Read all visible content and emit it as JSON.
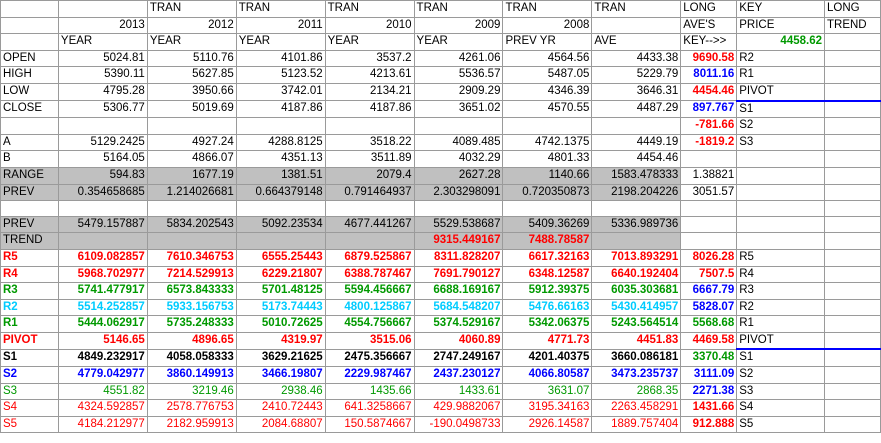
{
  "header": {
    "row1": [
      "",
      "",
      "TRAN",
      "TRAN",
      "TRAN",
      "TRAN",
      "TRAN",
      "TRAN",
      "LONG",
      "KEY",
      "LONG"
    ],
    "row2": [
      "",
      "2013",
      "2012",
      "2011",
      "2010",
      "2009",
      "2008",
      "",
      "AVE'S",
      "PRICE",
      "TREND"
    ],
    "row3": [
      "",
      "YEAR",
      "YEAR",
      "YEAR",
      "YEAR",
      "YEAR",
      "PREV YR",
      "AVE",
      "KEY-->>",
      "4458.62",
      ""
    ]
  },
  "rows": [
    {
      "name": "row-open",
      "style": "plain",
      "cells": [
        "OPEN",
        "5024.81",
        "5110.76",
        "4101.86",
        "3537.2",
        "4261.06",
        "4564.56",
        "4433.38",
        "9690.58",
        "R2",
        ""
      ],
      "longColor": "red"
    },
    {
      "name": "row-high",
      "style": "plain",
      "cells": [
        "HIGH",
        "5390.11",
        "5627.85",
        "5123.52",
        "4213.61",
        "5536.57",
        "5487.05",
        "5229.79",
        "8011.16",
        "R1",
        ""
      ],
      "longColor": "blue"
    },
    {
      "name": "row-low",
      "style": "plain",
      "cells": [
        "LOW",
        "4795.28",
        "3950.66",
        "3742.01",
        "2134.21",
        "2909.29",
        "4346.39",
        "3646.31",
        "4454.46",
        "PIVOT",
        ""
      ],
      "longColor": "red"
    },
    {
      "name": "row-close",
      "style": "plain",
      "cells": [
        "CLOSE",
        "5306.77",
        "5019.69",
        "4187.86",
        "4187.86",
        "3651.02",
        "4570.55",
        "4487.29",
        "897.767",
        "S1",
        ""
      ],
      "longColor": "blue"
    },
    {
      "name": "row-blank1",
      "style": "plain",
      "cells": [
        "",
        "",
        "",
        "",
        "",
        "",
        "",
        "",
        "-781.66",
        "S2",
        ""
      ],
      "longColor": "red"
    },
    {
      "name": "row-a",
      "style": "plain",
      "cells": [
        "A",
        "5129.2425",
        "4927.24",
        "4288.8125",
        "3518.22",
        "4089.485",
        "4742.1375",
        "4449.19",
        "-1819.2",
        "S3",
        ""
      ],
      "longColor": "red"
    },
    {
      "name": "row-b",
      "style": "plain",
      "cells": [
        "B",
        "5164.05",
        "4866.07",
        "4351.13",
        "3511.89",
        "4032.29",
        "4801.33",
        "4454.46",
        "",
        "",
        ""
      ],
      "longColor": "none"
    },
    {
      "name": "row-range",
      "style": "gray",
      "cells": [
        "RANGE",
        "594.83",
        "1677.19",
        "1381.51",
        "2079.4",
        "2627.28",
        "1140.66",
        "1583.478333",
        "1.38821",
        "",
        ""
      ],
      "longColor": "plain"
    },
    {
      "name": "row-prev",
      "style": "gray",
      "cells": [
        "PREV",
        "0.354658685",
        "1.214026681",
        "0.664379148",
        "0.791464937",
        "2.303298091",
        "0.720350873",
        "2198.204226",
        "3051.57",
        "",
        ""
      ],
      "longColor": "plain"
    },
    {
      "name": "row-blank2",
      "style": "plain",
      "cells": [
        "",
        "",
        "",
        "",
        "",
        "",
        "",
        "",
        "",
        "",
        ""
      ],
      "longColor": "none"
    },
    {
      "name": "row-prev2",
      "style": "gray",
      "cells": [
        "PREV",
        "5479.157887",
        "5834.202543",
        "5092.23534",
        "4677.441267",
        "5529.538687",
        "5409.36269",
        "5336.989736",
        "",
        "",
        ""
      ],
      "longColor": "none"
    },
    {
      "name": "row-trend",
      "style": "gray-trend",
      "cells": [
        "TREND",
        "",
        "",
        "",
        "",
        "9315.449167",
        "7488.78587",
        "",
        "",
        "",
        ""
      ],
      "longColor": "none"
    },
    {
      "name": "row-r5",
      "style": "red",
      "cells": [
        "R5",
        "6109.082857",
        "7610.346753",
        "6555.25443",
        "6879.525867",
        "8311.828207",
        "6617.32163",
        "7013.893291",
        "8026.28",
        "R5",
        ""
      ],
      "longColor": "red"
    },
    {
      "name": "row-r4",
      "style": "red",
      "cells": [
        "R4",
        "5968.702977",
        "7214.529913",
        "6229.21807",
        "6388.787467",
        "7691.790127",
        "6348.12587",
        "6640.192404",
        "7507.5",
        "R4",
        ""
      ],
      "longColor": "red"
    },
    {
      "name": "row-r3",
      "style": "green",
      "cells": [
        "R3",
        "5741.477917",
        "6573.843333",
        "5701.48125",
        "5594.456667",
        "6688.169167",
        "5912.39375",
        "6035.303681",
        "6667.79",
        "R3",
        ""
      ],
      "longColor": "blue"
    },
    {
      "name": "row-r2",
      "style": "cyan",
      "cells": [
        "R2",
        "5514.252857",
        "5933.156753",
        "5173.74443",
        "4800.125867",
        "5684.548207",
        "5476.66163",
        "5430.414957",
        "5828.07",
        "R2",
        ""
      ],
      "longColor": "blue"
    },
    {
      "name": "row-r1",
      "style": "green",
      "cells": [
        "R1",
        "5444.062917",
        "5735.248333",
        "5010.72625",
        "4554.756667",
        "5374.529167",
        "5342.06375",
        "5243.564514",
        "5568.68",
        "R1",
        ""
      ],
      "longColor": "green"
    },
    {
      "name": "row-pivot",
      "style": "red",
      "cells": [
        "PIVOT",
        "5146.65",
        "4896.65",
        "4319.97",
        "3515.06",
        "4060.89",
        "4771.73",
        "4451.83",
        "4469.58",
        "PIVOT",
        ""
      ],
      "longColor": "red"
    },
    {
      "name": "row-s1",
      "style": "black",
      "cells": [
        "S1",
        "4849.232917",
        "4058.058333",
        "3629.21625",
        "2475.356667",
        "2747.249167",
        "4201.40375",
        "3660.086181",
        "3370.48",
        "S1",
        ""
      ],
      "longColor": "green"
    },
    {
      "name": "row-s2",
      "style": "blue",
      "cells": [
        "S2",
        "4779.042977",
        "3860.149913",
        "3466.19807",
        "2229.987467",
        "2437.230127",
        "4066.80587",
        "3473.235737",
        "3111.09",
        "S2",
        ""
      ],
      "longColor": "blue"
    },
    {
      "name": "row-s3",
      "style": "green-plain",
      "cells": [
        "S3",
        "4551.82",
        "3219.46",
        "2938.46",
        "1435.66",
        "1433.61",
        "3631.07",
        "2868.35",
        "2271.38",
        "S3",
        ""
      ],
      "longColor": "blue"
    },
    {
      "name": "row-s4",
      "style": "red-plain",
      "cells": [
        "S4",
        "4324.592857",
        "2578.776753",
        "2410.72443",
        "641.3258667",
        "429.9882067",
        "3195.34163",
        "2263.458291",
        "1431.66",
        "S4",
        ""
      ],
      "longColor": "red"
    },
    {
      "name": "row-s5",
      "style": "red-plain",
      "cells": [
        "S5",
        "4184.212977",
        "2182.959913",
        "2084.68807",
        "150.5874667",
        "-190.0498733",
        "2926.14587",
        "1889.757404",
        "912.888",
        "S5",
        ""
      ],
      "longColor": "red"
    }
  ],
  "colors": {
    "red": "#ff0000",
    "blue": "#0000ff",
    "green": "#009900",
    "cyan": "#00ccff",
    "gray": "#c0c0c0",
    "keyGreen": "#009900"
  }
}
